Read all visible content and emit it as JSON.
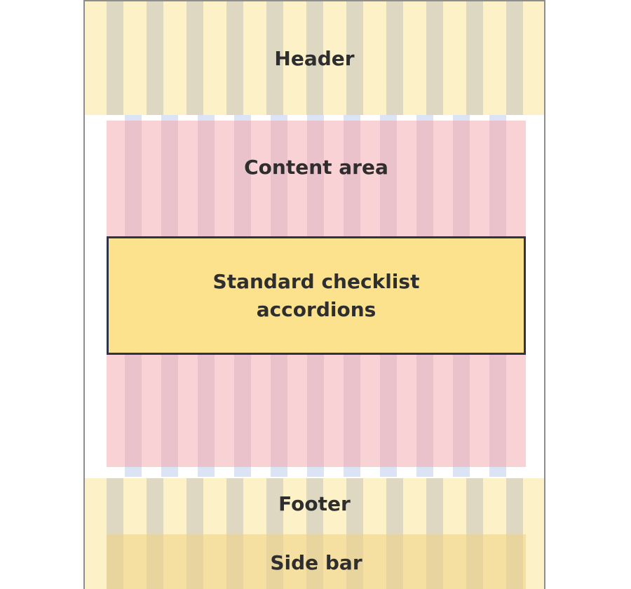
{
  "diagram": {
    "header": {
      "label": "Header"
    },
    "content_area": {
      "label": "Content area"
    },
    "accordion": {
      "label": "Standard checklist\naccordions"
    },
    "footer": {
      "label": "Footer"
    },
    "sidebar": {
      "label": "Side bar"
    }
  },
  "colors": {
    "header_footer_bg": "#fdf1c8",
    "content_bg": "#f8d2d4",
    "accordion_bg": "#fde28e",
    "accordion_border": "#2d3447",
    "sidebar_bg": "#f3d996",
    "frame_border": "#8d8d8d"
  }
}
